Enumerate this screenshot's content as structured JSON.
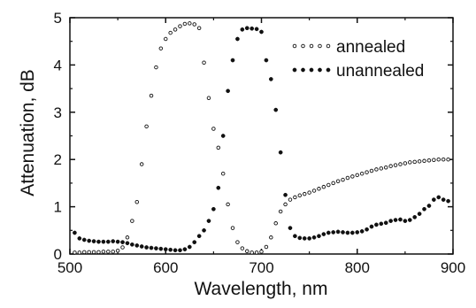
{
  "chart_data": {
    "type": "scatter",
    "xlabel": "Wavelength, nm",
    "ylabel": "Attenuation, dB",
    "xlim": [
      500,
      900
    ],
    "ylim": [
      0,
      5
    ],
    "xticks": [
      "500",
      "600",
      "700",
      "800",
      "900"
    ],
    "yticks": [
      "0",
      "1",
      "2",
      "3",
      "4",
      "5"
    ],
    "legend_position": "top-right",
    "series": [
      {
        "name": "annealed",
        "marker": "open-circle",
        "x": [
          505,
          510,
          515,
          520,
          525,
          530,
          535,
          540,
          545,
          550,
          555,
          560,
          565,
          570,
          575,
          580,
          585,
          590,
          595,
          600,
          605,
          610,
          615,
          620,
          625,
          630,
          635,
          640,
          645,
          650,
          655,
          660,
          665,
          670,
          675,
          680,
          685,
          690,
          695,
          700,
          705,
          710,
          715,
          720,
          725,
          730,
          735,
          740,
          745,
          750,
          755,
          760,
          765,
          770,
          775,
          780,
          785,
          790,
          795,
          800,
          805,
          810,
          815,
          820,
          825,
          830,
          835,
          840,
          845,
          850,
          855,
          860,
          865,
          870,
          875,
          880,
          885,
          890,
          895
        ],
        "y": [
          0.03,
          0.03,
          0.04,
          0.04,
          0.04,
          0.04,
          0.05,
          0.05,
          0.05,
          0.07,
          0.14,
          0.35,
          0.7,
          1.1,
          1.9,
          2.7,
          3.35,
          3.95,
          4.35,
          4.55,
          4.68,
          4.75,
          4.82,
          4.87,
          4.88,
          4.86,
          4.78,
          4.05,
          3.3,
          2.65,
          2.25,
          1.7,
          1.05,
          0.55,
          0.25,
          0.12,
          0.06,
          0.03,
          0.03,
          0.05,
          0.15,
          0.35,
          0.65,
          0.9,
          1.05,
          1.15,
          1.2,
          1.24,
          1.27,
          1.3,
          1.34,
          1.38,
          1.42,
          1.46,
          1.5,
          1.54,
          1.57,
          1.61,
          1.64,
          1.67,
          1.7,
          1.73,
          1.76,
          1.79,
          1.81,
          1.83,
          1.86,
          1.88,
          1.9,
          1.92,
          1.94,
          1.95,
          1.96,
          1.97,
          1.98,
          1.99,
          2.0,
          2.0,
          2.0
        ]
      },
      {
        "name": "unannealed",
        "marker": "filled-circle",
        "x": [
          505,
          510,
          515,
          520,
          525,
          530,
          535,
          540,
          545,
          550,
          555,
          560,
          565,
          570,
          575,
          580,
          585,
          590,
          595,
          600,
          605,
          610,
          615,
          620,
          625,
          630,
          635,
          640,
          645,
          650,
          655,
          660,
          665,
          670,
          675,
          680,
          685,
          690,
          695,
          700,
          705,
          710,
          715,
          720,
          725,
          730,
          735,
          740,
          745,
          750,
          755,
          760,
          765,
          770,
          775,
          780,
          785,
          790,
          795,
          800,
          805,
          810,
          815,
          820,
          825,
          830,
          835,
          840,
          845,
          850,
          855,
          860,
          865,
          870,
          875,
          880,
          885,
          890,
          895
        ],
        "y": [
          0.45,
          0.33,
          0.3,
          0.28,
          0.27,
          0.26,
          0.26,
          0.26,
          0.27,
          0.26,
          0.25,
          0.23,
          0.2,
          0.18,
          0.16,
          0.14,
          0.13,
          0.12,
          0.11,
          0.1,
          0.09,
          0.08,
          0.08,
          0.1,
          0.15,
          0.25,
          0.38,
          0.5,
          0.7,
          0.95,
          1.4,
          2.5,
          3.45,
          4.1,
          4.55,
          4.75,
          4.78,
          4.77,
          4.76,
          4.7,
          4.1,
          3.7,
          3.05,
          2.15,
          1.25,
          0.55,
          0.38,
          0.34,
          0.33,
          0.33,
          0.35,
          0.38,
          0.42,
          0.45,
          0.46,
          0.47,
          0.46,
          0.45,
          0.45,
          0.46,
          0.48,
          0.52,
          0.58,
          0.62,
          0.64,
          0.66,
          0.7,
          0.72,
          0.73,
          0.7,
          0.72,
          0.78,
          0.85,
          0.95,
          1.02,
          1.15,
          1.2,
          1.15,
          1.12
        ]
      }
    ]
  }
}
